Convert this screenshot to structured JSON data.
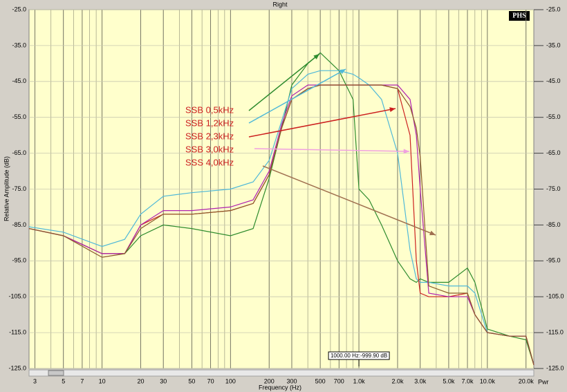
{
  "chart_data": {
    "type": "line",
    "title": "Right",
    "logo": "PHS",
    "y_label": "Relative Amplitude (dB)",
    "x_label": "Frequency (Hz)",
    "cursor_label": "1000.00 Hz:-999.90 dB",
    "power_label": "Pwr",
    "x_log": true,
    "grid": true,
    "xlim": [
      2.7,
      23000
    ],
    "xticks": [
      3,
      5,
      7,
      10,
      20,
      30,
      50,
      70,
      100,
      200,
      300,
      500,
      700,
      {
        "value": 1000,
        "label": "1.0k"
      },
      {
        "value": 2000,
        "label": "2.0k"
      },
      {
        "value": 3000,
        "label": "3.0k"
      },
      {
        "value": 5000,
        "label": "5.0k"
      },
      {
        "value": 7000,
        "label": "7.0k"
      },
      {
        "value": 10000,
        "label": "10.0k"
      },
      {
        "value": 20000,
        "label": "20.0k"
      }
    ],
    "ylim": [
      -125,
      -25
    ],
    "yticks": [
      {
        "value": -25,
        "label": "-25.0"
      },
      {
        "value": -35,
        "label": "-35.0"
      },
      {
        "value": -45,
        "label": "-45.0"
      },
      {
        "value": -55,
        "label": "-55.0"
      },
      {
        "value": -65,
        "label": "-65.0"
      },
      {
        "value": -75,
        "label": "-75.0"
      },
      {
        "value": -85,
        "label": "-85.0"
      },
      {
        "value": -95,
        "label": "-95.0"
      },
      {
        "value": -105,
        "label": "-105.0"
      },
      {
        "value": -115,
        "label": "-115.0"
      },
      {
        "value": -125,
        "label": "-125.0"
      }
    ],
    "x": [
      2.7,
      5,
      10,
      15,
      20,
      30,
      50,
      100,
      150,
      200,
      250,
      300,
      400,
      500,
      700,
      900,
      1000,
      1200,
      1500,
      2000,
      2500,
      2800,
      3000,
      3500,
      5000,
      7000,
      8000,
      10000,
      15000,
      20000,
      23000
    ],
    "series": [
      {
        "color": "#2e8b2e",
        "values": [
          -86,
          -88,
          -93,
          -93,
          -88,
          -85,
          -86,
          -88,
          -86,
          -72,
          -58,
          -46,
          -40,
          -37,
          -42,
          -50,
          -75,
          -78,
          -85,
          -95,
          -100,
          -101,
          -100,
          -101,
          -101,
          -97,
          -101,
          -114,
          -116,
          -117,
          -124
        ]
      },
      {
        "color": "#4fb8d8",
        "values": [
          -85.5,
          -87,
          -91,
          -89,
          -82,
          -77,
          -76,
          -75,
          -73,
          -67,
          -56,
          -47,
          -43,
          -42,
          -42,
          -43,
          -44,
          -46,
          -50,
          -65,
          -92,
          -100,
          -101,
          -101,
          -102,
          -102,
          -104,
          -115,
          -116,
          -116,
          -124
        ]
      },
      {
        "color": "#cc2020",
        "values": [
          -86,
          -88,
          -93,
          -93,
          -85,
          -82,
          -82,
          -81,
          -79,
          -71,
          -58,
          -50,
          -47,
          -46,
          -46,
          -46,
          -46,
          -46,
          -46,
          -47,
          -60,
          -95,
          -104,
          -105,
          -105,
          -104,
          -110,
          -115,
          -116,
          -116,
          -124
        ]
      },
      {
        "color": "#b020b0",
        "values": [
          -86,
          -88,
          -93,
          -93,
          -85,
          -81,
          -81,
          -80,
          -78,
          -70,
          -57,
          -49,
          -46,
          -46,
          -46,
          -46,
          -46,
          -46,
          -46,
          -46,
          -50,
          -60,
          -75,
          -104,
          -105,
          -105,
          -110,
          -115,
          -116,
          -116,
          -124
        ]
      },
      {
        "color": "#8b5a2b",
        "values": [
          -86,
          -88,
          -94,
          -93,
          -86,
          -82,
          -82,
          -81,
          -79,
          -71,
          -58,
          -50,
          -47,
          -46,
          -46,
          -46,
          -46,
          -46,
          -46,
          -47,
          -52,
          -58,
          -66,
          -102,
          -104,
          -104,
          -110,
          -115,
          -116,
          -116,
          -124
        ]
      }
    ],
    "annotations": [
      {
        "text": "SSB  0,5kHz",
        "color": "#cc2020"
      },
      {
        "text": "SSB  1,2kHz",
        "color": "#cc2020"
      },
      {
        "text": "SSB  2,3kHz",
        "color": "#cc2020"
      },
      {
        "text": "SSB  3,0kHz",
        "color": "#cc2020"
      },
      {
        "text": "SSS  4,0kHz",
        "color": "#cc2020"
      }
    ]
  }
}
